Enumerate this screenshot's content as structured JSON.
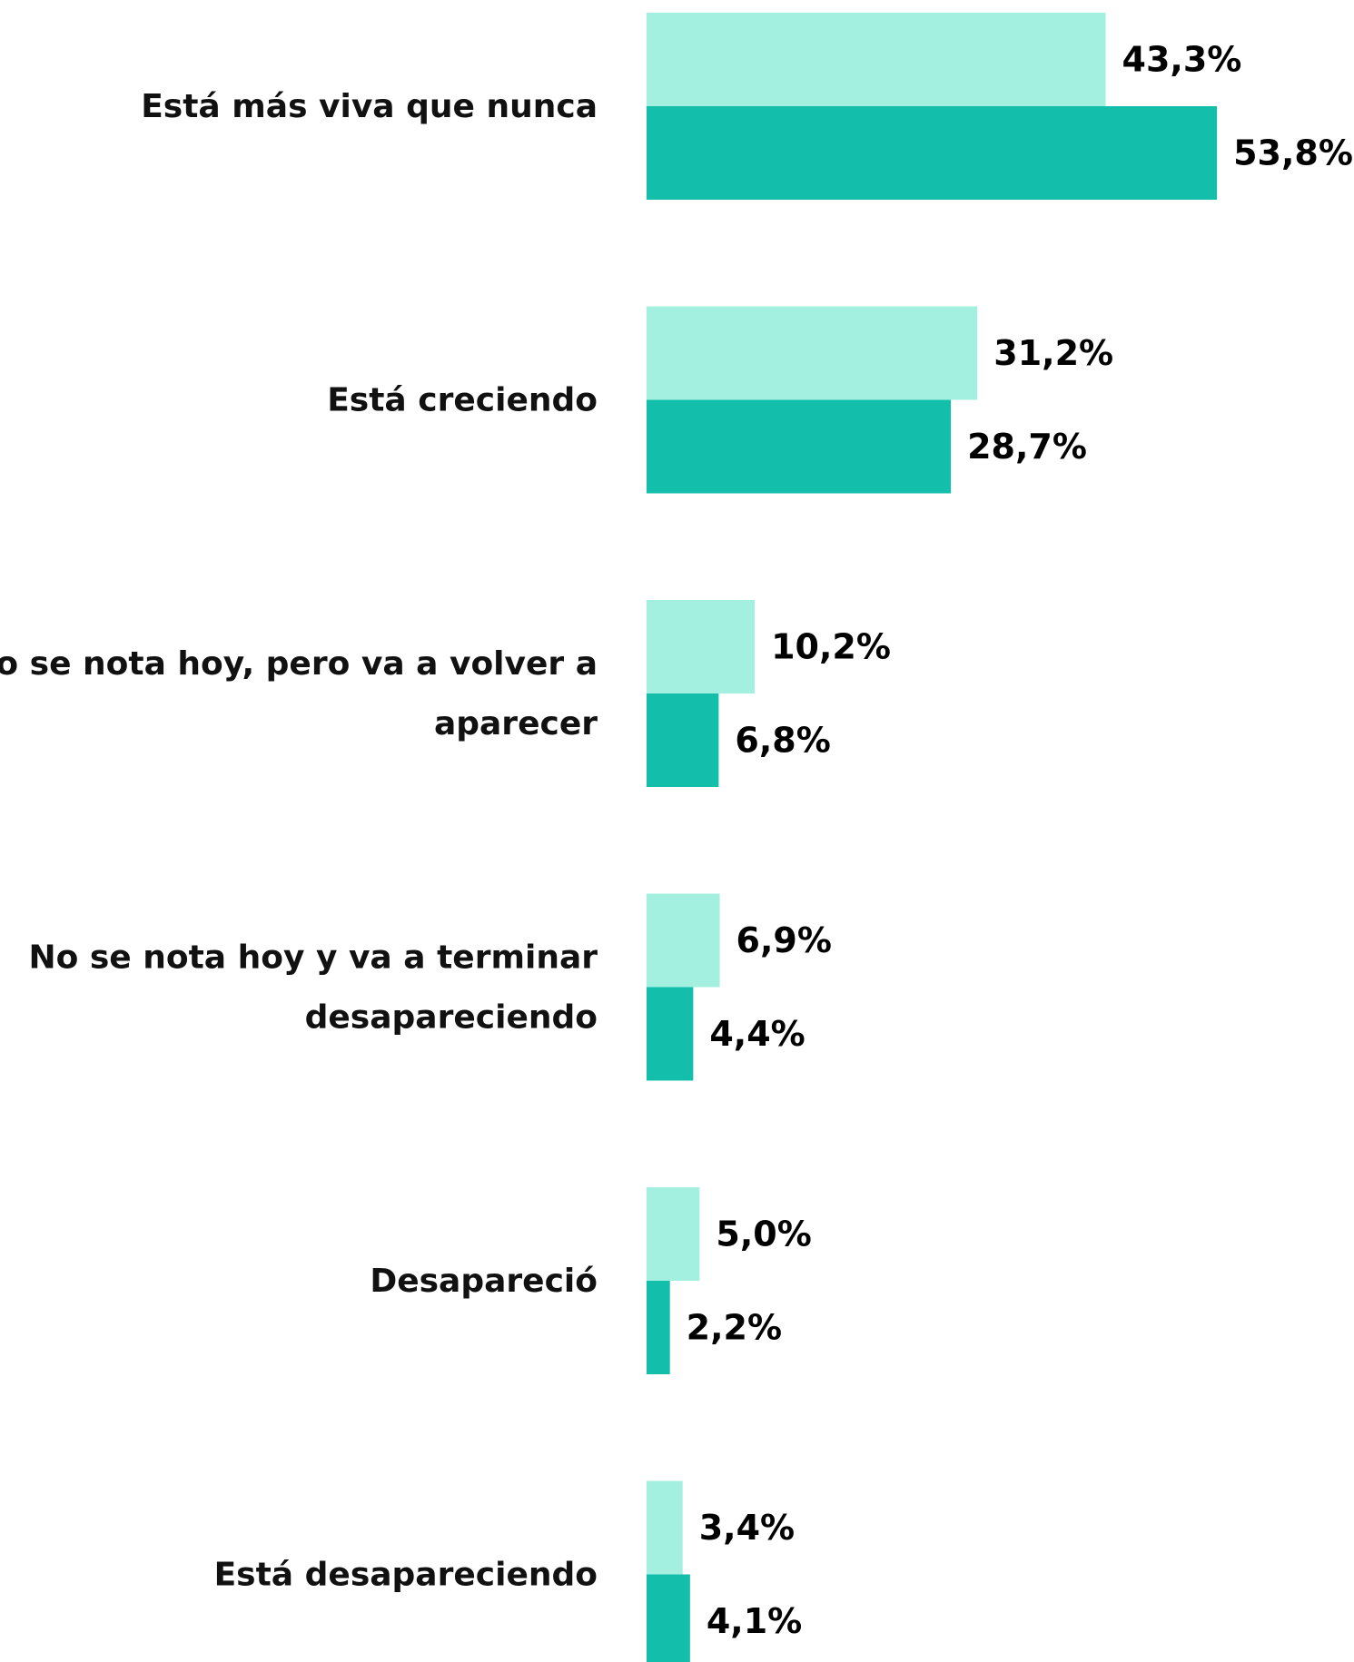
{
  "chart_data": {
    "type": "bar",
    "orientation": "horizontal",
    "categories": [
      [
        "Está más viva que nunca"
      ],
      [
        "Está creciendo"
      ],
      [
        "No se nota hoy, pero va a volver a",
        "aparecer"
      ],
      [
        "No se nota hoy y va a terminar",
        "desapareciendo"
      ],
      [
        "Desapareció"
      ],
      [
        "Está desapareciendo"
      ]
    ],
    "series": [
      {
        "color": "#a4f0e0",
        "values": [
          43.3,
          31.2,
          10.2,
          6.9,
          5.0,
          3.4
        ],
        "labels": [
          "43,3%",
          "31,2%",
          "10,2%",
          "6,9%",
          "5,0%",
          "3,4%"
        ]
      },
      {
        "color": "#13bfab",
        "values": [
          53.8,
          28.7,
          6.8,
          4.4,
          2.2,
          4.1
        ],
        "labels": [
          "53,8%",
          "28,7%",
          "6,8%",
          "4,4%",
          "2,2%",
          "4,1%"
        ]
      }
    ],
    "grid": false,
    "legend": "none"
  }
}
